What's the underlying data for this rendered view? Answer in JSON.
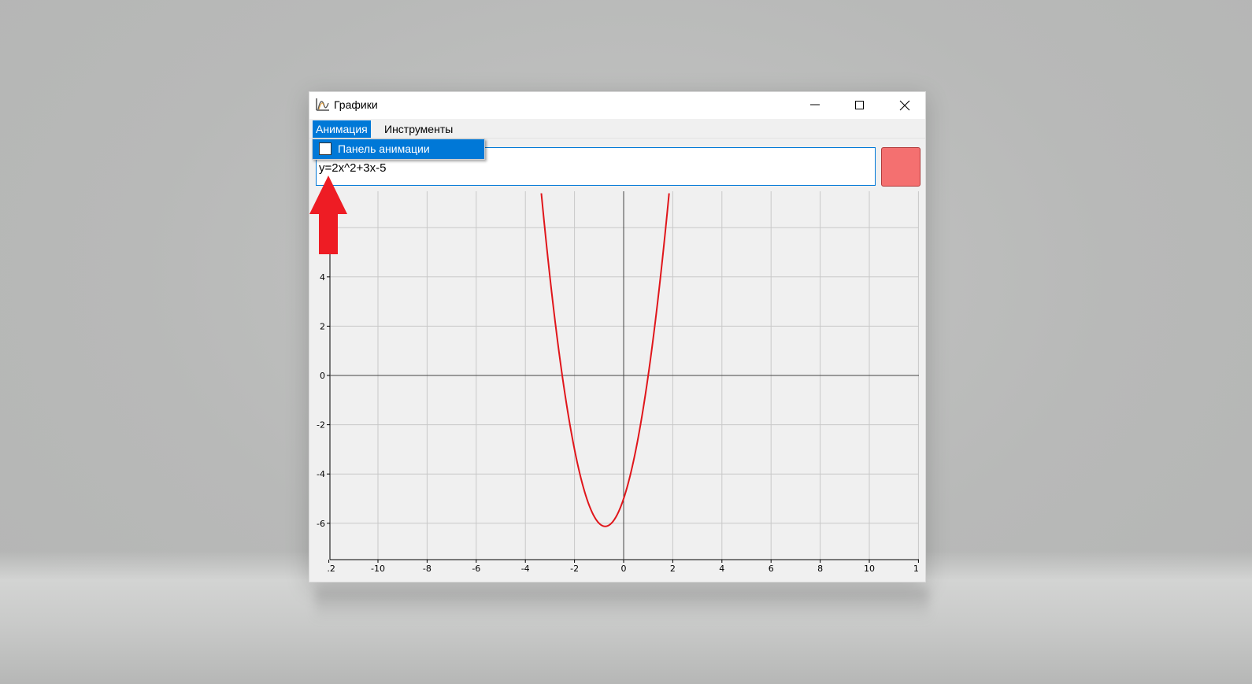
{
  "window": {
    "title": "Графики",
    "controls": [
      "minimize",
      "maximize",
      "close"
    ]
  },
  "menu": {
    "items": [
      {
        "label": "Анимация",
        "active": true
      },
      {
        "label": "Инструменты",
        "active": false
      }
    ],
    "dropdown": {
      "items": [
        {
          "label": "Панель анимации",
          "checked": false
        }
      ]
    }
  },
  "expression_input": {
    "value": "y=2x^2+3x-5"
  },
  "color_button": {
    "color": "#f47070"
  },
  "icons": {
    "app": "graph-icon",
    "annotation": "red-arrow-up-icon"
  },
  "colors": {
    "curve": "#e0161b",
    "menu_highlight": "#0078d7",
    "annotation_arrow": "#ee1c24"
  },
  "chart_data": {
    "type": "line",
    "function": "y=2x^2+3x-5",
    "xlim": [
      -12,
      12
    ],
    "ylim": [
      -7.5,
      7.5
    ],
    "x_ticks": [
      ".2",
      "-10",
      "-8",
      "-6",
      "-4",
      "-2",
      "0",
      "2",
      "4",
      "6",
      "8",
      "10",
      "1"
    ],
    "y_ticks": [
      "4",
      "2",
      "0",
      "-2",
      "-4",
      "-6"
    ],
    "grid": true
  }
}
